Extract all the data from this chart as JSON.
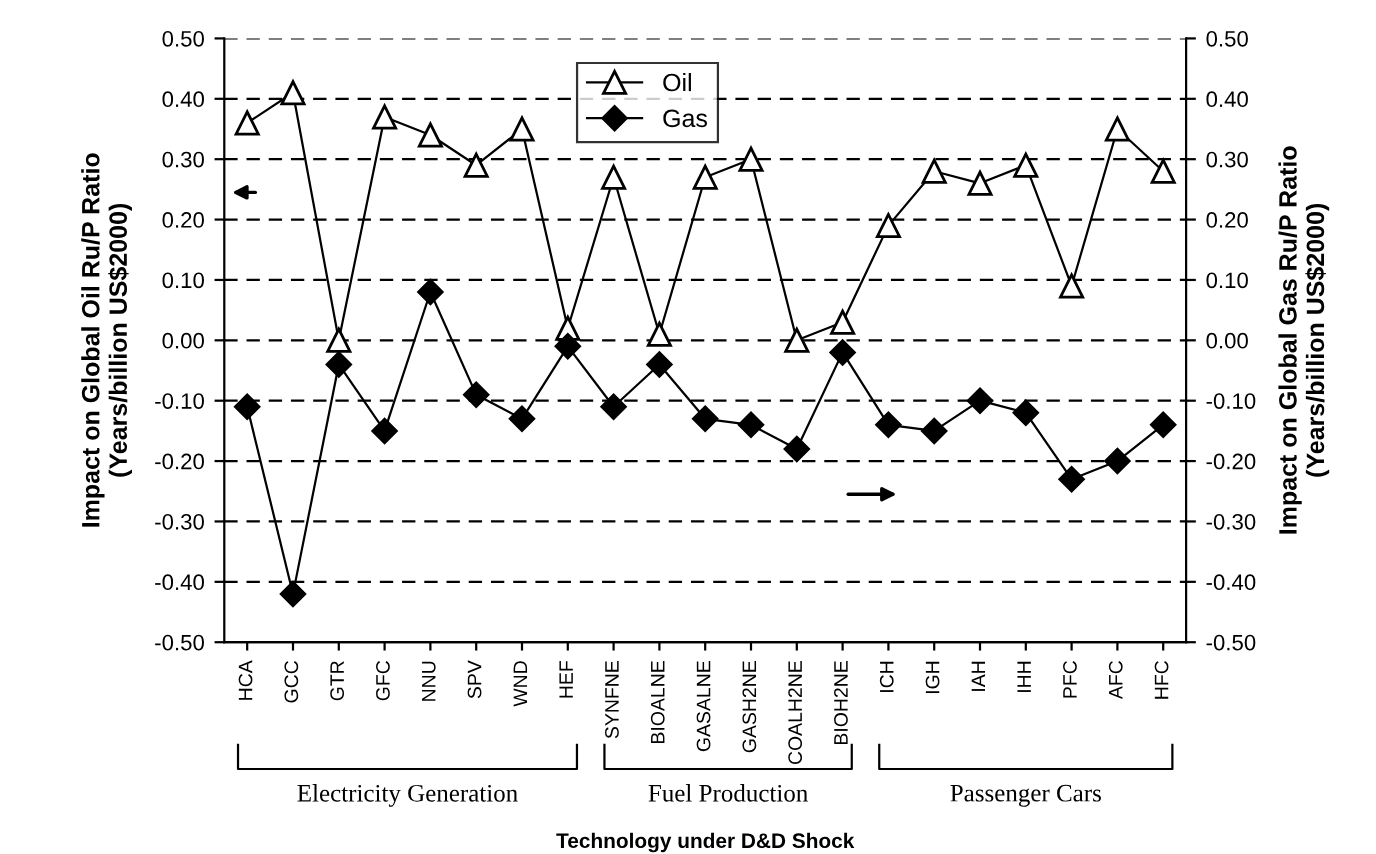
{
  "chart_data": {
    "type": "line",
    "categories": [
      "HCA",
      "GCC",
      "GTR",
      "GFC",
      "NNU",
      "SPV",
      "WND",
      "HEF",
      "SYNFNE",
      "BIOALNE",
      "GASALNE",
      "GASH2NE",
      "COALH2NE",
      "BIOH2NE",
      "ICH",
      "IGH",
      "IAH",
      "IHH",
      "PFC",
      "AFC",
      "HFC"
    ],
    "series": [
      {
        "name": "Oil",
        "color": "#000000",
        "marker": "triangle",
        "values": [
          0.36,
          0.41,
          0.0,
          0.37,
          0.34,
          0.29,
          0.35,
          0.02,
          0.27,
          0.01,
          0.27,
          0.3,
          0.0,
          0.03,
          0.19,
          0.28,
          0.26,
          0.29,
          0.09,
          0.35,
          0.28
        ]
      },
      {
        "name": "Gas",
        "color": "#000000",
        "marker": "diamond",
        "axis": "y2",
        "values": [
          -0.11,
          -0.42,
          -0.04,
          -0.15,
          0.08,
          -0.09,
          -0.13,
          -0.01,
          -0.11,
          -0.04,
          -0.13,
          -0.14,
          -0.18,
          -0.02,
          -0.14,
          -0.15,
          -0.1,
          -0.12,
          -0.23,
          -0.2,
          -0.14
        ]
      }
    ],
    "xlabel": "Technology under D&D Shock",
    "ylabel": "Impact on Global Oil Ru/P Ratio\n(Years/billion US$2000)",
    "y2label": "Impact on Global Gas Ru/P Ratio\n(Years/billion US$2000)",
    "annotations": [
      "Electricity Generation",
      "Fuel Production",
      "Passenger Cars"
    ],
    "ylim": [
      -0.5,
      0.5
    ],
    "yticks": [
      {
        "value": -0.5,
        "label": "-0.50"
      },
      {
        "value": -0.4,
        "label": "-0.40"
      },
      {
        "value": -0.3,
        "label": "-0.30"
      },
      {
        "value": -0.2,
        "label": "-0.20"
      },
      {
        "value": -0.1,
        "label": "-0.10"
      },
      {
        "value": 0.0,
        "label": "0.00"
      },
      {
        "value": 0.1,
        "label": "0.10"
      },
      {
        "value": 0.2,
        "label": "0.20"
      },
      {
        "value": 0.3,
        "label": "0.30"
      },
      {
        "value": 0.4,
        "label": "0.40"
      },
      {
        "value": 0.5,
        "label": "0.50"
      }
    ],
    "y2lim": [
      -0.5,
      0.5
    ],
    "y2ticks": [
      {
        "value": -0.5,
        "label": "-0.50"
      },
      {
        "value": -0.4,
        "label": "-0.40"
      },
      {
        "value": -0.3,
        "label": "-0.30"
      },
      {
        "value": -0.2,
        "label": "-0.20"
      },
      {
        "value": -0.1,
        "label": "-0.10"
      },
      {
        "value": 0.0,
        "label": "0.00"
      },
      {
        "value": 0.1,
        "label": "0.10"
      },
      {
        "value": 0.2,
        "label": "0.20"
      },
      {
        "value": 0.3,
        "label": "0.30"
      },
      {
        "value": 0.4,
        "label": "0.40"
      },
      {
        "value": 0.5,
        "label": "0.50"
      }
    ],
    "grid": "y",
    "legend": "top",
    "line_style": "solid"
  }
}
